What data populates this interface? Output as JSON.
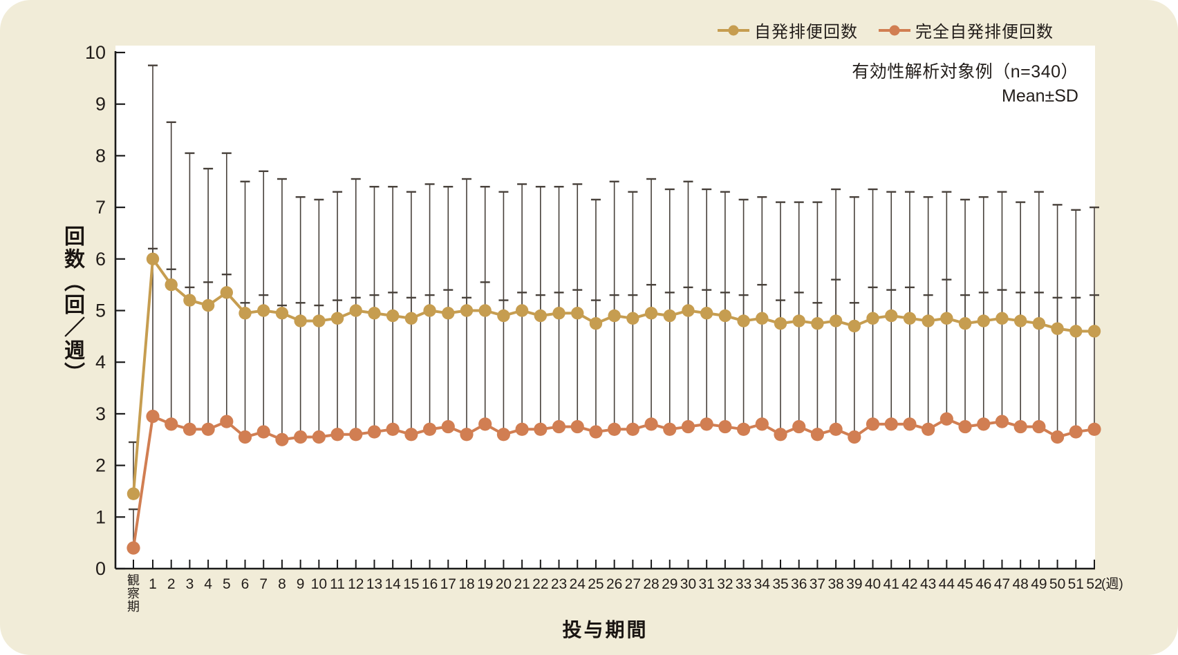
{
  "annotation": {
    "line1": "有効性解析対象例（n=340）",
    "line2": "Mean±SD"
  },
  "colors": {
    "background": "#F1ECD8",
    "plot_background": "#FFFFFF",
    "axis": "#1A1A1A",
    "error_bar": "#47403A",
    "series1": "#C69D50",
    "series2": "#D17E52",
    "text": "#221D1A"
  },
  "chart_data": {
    "type": "line",
    "title": "",
    "xlabel": "投与期間",
    "ylabel": "回数（回／週）",
    "x_unit_suffix": "(週)",
    "legend_position": "top-right",
    "grid": false,
    "error_bars": "upper-SD-only",
    "ylim": [
      0,
      10
    ],
    "y_ticks": [
      0,
      1,
      2,
      3,
      4,
      5,
      6,
      7,
      8,
      9,
      10
    ],
    "categories": [
      "観察期",
      "1",
      "2",
      "3",
      "4",
      "5",
      "6",
      "7",
      "8",
      "9",
      "10",
      "11",
      "12",
      "13",
      "14",
      "15",
      "16",
      "17",
      "18",
      "19",
      "20",
      "21",
      "22",
      "23",
      "24",
      "25",
      "26",
      "27",
      "28",
      "29",
      "30",
      "31",
      "32",
      "33",
      "34",
      "35",
      "36",
      "37",
      "38",
      "39",
      "40",
      "41",
      "42",
      "43",
      "44",
      "45",
      "46",
      "47",
      "48",
      "49",
      "50",
      "51",
      "52"
    ],
    "series": [
      {
        "name": "自発排便回数",
        "color": "#C69D50",
        "values": [
          1.45,
          6.0,
          5.5,
          5.2,
          5.1,
          5.35,
          4.95,
          5.0,
          4.95,
          4.8,
          4.8,
          4.85,
          5.0,
          4.95,
          4.9,
          4.85,
          5.0,
          4.95,
          5.0,
          5.0,
          4.9,
          5.0,
          4.9,
          4.95,
          4.95,
          4.75,
          4.9,
          4.85,
          4.95,
          4.9,
          5.0,
          4.95,
          4.9,
          4.8,
          4.85,
          4.75,
          4.8,
          4.75,
          4.8,
          4.7,
          4.85,
          4.9,
          4.85,
          4.8,
          4.85,
          4.75,
          4.8,
          4.85,
          4.8,
          4.75,
          4.65,
          4.6,
          4.6
        ],
        "upper": [
          2.45,
          9.75,
          8.65,
          8.05,
          7.75,
          8.05,
          7.5,
          7.7,
          7.55,
          7.2,
          7.15,
          7.3,
          7.55,
          7.4,
          7.4,
          7.3,
          7.45,
          7.4,
          7.55,
          7.4,
          7.3,
          7.45,
          7.4,
          7.4,
          7.45,
          7.15,
          7.5,
          7.3,
          7.55,
          7.35,
          7.5,
          7.35,
          7.3,
          7.15,
          7.2,
          7.1,
          7.1,
          7.1,
          7.35,
          7.2,
          7.35,
          7.3,
          7.3,
          7.2,
          7.3,
          7.15,
          7.2,
          7.3,
          7.1,
          7.3,
          7.05,
          6.95,
          7.0
        ]
      },
      {
        "name": "完全自発排便回数",
        "color": "#D17E52",
        "values": [
          0.4,
          2.95,
          2.8,
          2.7,
          2.7,
          2.85,
          2.55,
          2.65,
          2.5,
          2.55,
          2.55,
          2.6,
          2.6,
          2.65,
          2.7,
          2.6,
          2.7,
          2.75,
          2.6,
          2.8,
          2.6,
          2.7,
          2.7,
          2.75,
          2.75,
          2.65,
          2.7,
          2.7,
          2.8,
          2.7,
          2.75,
          2.8,
          2.75,
          2.7,
          2.8,
          2.6,
          2.75,
          2.6,
          2.7,
          2.55,
          2.8,
          2.8,
          2.8,
          2.7,
          2.9,
          2.75,
          2.8,
          2.85,
          2.75,
          2.75,
          2.55,
          2.65,
          2.7
        ],
        "upper": [
          1.15,
          6.2,
          5.8,
          5.45,
          5.55,
          5.7,
          5.15,
          5.3,
          5.1,
          5.15,
          5.1,
          5.2,
          5.25,
          5.3,
          5.35,
          5.25,
          5.3,
          5.4,
          5.25,
          5.55,
          5.2,
          5.35,
          5.3,
          5.35,
          5.4,
          5.2,
          5.3,
          5.3,
          5.5,
          5.35,
          5.45,
          5.4,
          5.35,
          5.3,
          5.5,
          5.2,
          5.35,
          5.15,
          5.6,
          5.15,
          5.45,
          5.4,
          5.45,
          5.3,
          5.6,
          5.3,
          5.35,
          5.4,
          5.35,
          5.35,
          5.25,
          5.25,
          5.3
        ]
      }
    ]
  }
}
